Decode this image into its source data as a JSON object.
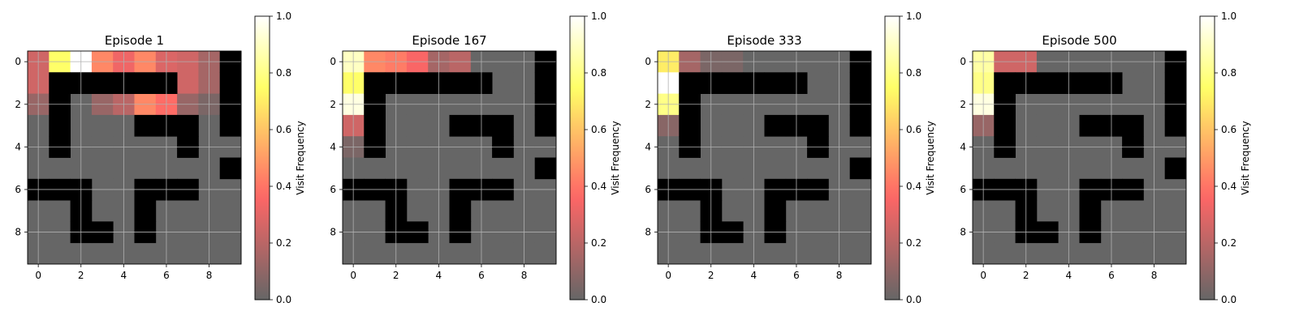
{
  "figure": {
    "colormap": "hot",
    "colormap_alpha": 0.6,
    "wall_color": "#000000",
    "grid_color": "#b0b0b0",
    "colorbar_label": "Visit Frequency",
    "colorbar_ticks": [
      "0.0",
      "0.2",
      "0.4",
      "0.6",
      "0.8",
      "1.0"
    ],
    "axis_ticks": [
      "0",
      "2",
      "4",
      "6",
      "8"
    ]
  },
  "chart_data": [
    {
      "type": "heatmap",
      "title": "Episode 1",
      "xlabel": "",
      "ylabel": "",
      "xlim": [
        -0.5,
        9.5
      ],
      "ylim": [
        9.5,
        -0.5
      ],
      "color_range": [
        0,
        1
      ],
      "grid": true,
      "legend": "colorbar-right",
      "values": [
        [
          0.25,
          0.75,
          1.0,
          0.45,
          0.33,
          0.45,
          0.28,
          0.25,
          0.15,
          0.0
        ],
        [
          0.25,
          0.0,
          0.0,
          0.0,
          0.0,
          0.0,
          0.0,
          0.25,
          0.15,
          0.0
        ],
        [
          0.12,
          0.0,
          0.0,
          0.12,
          0.2,
          0.45,
          0.38,
          0.12,
          0.05,
          0.0
        ],
        [
          0.0,
          0.0,
          0.0,
          0.0,
          0.0,
          0.0,
          0.0,
          0.0,
          0.0,
          0.0
        ],
        [
          0.0,
          0.0,
          0.0,
          0.0,
          0.0,
          0.0,
          0.0,
          0.0,
          0.0,
          0.0
        ],
        [
          0.0,
          0.0,
          0.0,
          0.0,
          0.0,
          0.0,
          0.0,
          0.0,
          0.0,
          0.0
        ],
        [
          0.0,
          0.0,
          0.0,
          0.0,
          0.0,
          0.0,
          0.0,
          0.0,
          0.0,
          0.0
        ],
        [
          0.0,
          0.0,
          0.0,
          0.0,
          0.0,
          0.0,
          0.0,
          0.0,
          0.0,
          0.0
        ],
        [
          0.0,
          0.0,
          0.0,
          0.0,
          0.0,
          0.0,
          0.0,
          0.0,
          0.0,
          0.0
        ],
        [
          0.0,
          0.0,
          0.0,
          0.0,
          0.0,
          0.0,
          0.0,
          0.0,
          0.0,
          0.0
        ]
      ],
      "walls": [
        [
          0,
          9
        ],
        [
          1,
          1
        ],
        [
          1,
          2
        ],
        [
          1,
          3
        ],
        [
          1,
          4
        ],
        [
          1,
          5
        ],
        [
          1,
          6
        ],
        [
          1,
          9
        ],
        [
          2,
          1
        ],
        [
          2,
          9
        ],
        [
          3,
          1
        ],
        [
          3,
          5
        ],
        [
          3,
          6
        ],
        [
          3,
          7
        ],
        [
          3,
          9
        ],
        [
          4,
          1
        ],
        [
          4,
          7
        ],
        [
          5,
          9
        ],
        [
          6,
          0
        ],
        [
          6,
          1
        ],
        [
          6,
          2
        ],
        [
          6,
          5
        ],
        [
          6,
          6
        ],
        [
          6,
          7
        ],
        [
          7,
          2
        ],
        [
          7,
          5
        ],
        [
          8,
          2
        ],
        [
          8,
          3
        ],
        [
          8,
          5
        ]
      ]
    },
    {
      "type": "heatmap",
      "title": "Episode 167",
      "xlabel": "",
      "ylabel": "",
      "xlim": [
        -0.5,
        9.5
      ],
      "ylim": [
        9.5,
        -0.5
      ],
      "color_range": [
        0,
        1
      ],
      "grid": true,
      "legend": "colorbar-right",
      "values": [
        [
          0.9,
          0.45,
          0.42,
          0.35,
          0.15,
          0.2,
          0.0,
          0.0,
          0.0,
          0.0
        ],
        [
          0.75,
          0.0,
          0.0,
          0.0,
          0.0,
          0.0,
          0.0,
          0.0,
          0.0,
          0.0
        ],
        [
          0.95,
          0.0,
          0.0,
          0.0,
          0.0,
          0.0,
          0.0,
          0.0,
          0.0,
          0.0
        ],
        [
          0.25,
          0.0,
          0.0,
          0.0,
          0.0,
          0.0,
          0.0,
          0.0,
          0.0,
          0.0
        ],
        [
          0.05,
          0.0,
          0.0,
          0.0,
          0.0,
          0.0,
          0.0,
          0.0,
          0.0,
          0.0
        ],
        [
          0.0,
          0.0,
          0.0,
          0.0,
          0.0,
          0.0,
          0.0,
          0.0,
          0.0,
          0.0
        ],
        [
          0.0,
          0.0,
          0.0,
          0.0,
          0.0,
          0.0,
          0.0,
          0.0,
          0.0,
          0.0
        ],
        [
          0.0,
          0.0,
          0.0,
          0.0,
          0.0,
          0.0,
          0.0,
          0.0,
          0.0,
          0.0
        ],
        [
          0.0,
          0.0,
          0.0,
          0.0,
          0.0,
          0.0,
          0.0,
          0.0,
          0.0,
          0.0
        ],
        [
          0.0,
          0.0,
          0.0,
          0.0,
          0.0,
          0.0,
          0.0,
          0.0,
          0.0,
          0.0
        ]
      ],
      "walls": [
        [
          0,
          9
        ],
        [
          1,
          1
        ],
        [
          1,
          2
        ],
        [
          1,
          3
        ],
        [
          1,
          4
        ],
        [
          1,
          5
        ],
        [
          1,
          6
        ],
        [
          1,
          9
        ],
        [
          2,
          1
        ],
        [
          2,
          9
        ],
        [
          3,
          1
        ],
        [
          3,
          5
        ],
        [
          3,
          6
        ],
        [
          3,
          7
        ],
        [
          3,
          9
        ],
        [
          4,
          1
        ],
        [
          4,
          7
        ],
        [
          5,
          9
        ],
        [
          6,
          0
        ],
        [
          6,
          1
        ],
        [
          6,
          2
        ],
        [
          6,
          5
        ],
        [
          6,
          6
        ],
        [
          6,
          7
        ],
        [
          7,
          2
        ],
        [
          7,
          5
        ],
        [
          8,
          2
        ],
        [
          8,
          3
        ],
        [
          8,
          5
        ]
      ]
    },
    {
      "type": "heatmap",
      "title": "Episode 333",
      "xlabel": "",
      "ylabel": "",
      "xlim": [
        -0.5,
        9.5
      ],
      "ylim": [
        9.5,
        -0.5
      ],
      "color_range": [
        0,
        1
      ],
      "grid": true,
      "legend": "colorbar-right",
      "values": [
        [
          0.7,
          0.15,
          0.05,
          0.05,
          0.0,
          0.0,
          0.0,
          0.0,
          0.0,
          0.0
        ],
        [
          1.0,
          0.0,
          0.0,
          0.0,
          0.0,
          0.0,
          0.0,
          0.0,
          0.0,
          0.0
        ],
        [
          0.8,
          0.0,
          0.0,
          0.0,
          0.0,
          0.0,
          0.0,
          0.0,
          0.0,
          0.0
        ],
        [
          0.08,
          0.0,
          0.0,
          0.0,
          0.0,
          0.0,
          0.0,
          0.0,
          0.0,
          0.0
        ],
        [
          0.0,
          0.0,
          0.0,
          0.0,
          0.0,
          0.0,
          0.0,
          0.0,
          0.0,
          0.0
        ],
        [
          0.0,
          0.0,
          0.0,
          0.0,
          0.0,
          0.0,
          0.0,
          0.0,
          0.0,
          0.0
        ],
        [
          0.0,
          0.0,
          0.0,
          0.0,
          0.0,
          0.0,
          0.0,
          0.0,
          0.0,
          0.0
        ],
        [
          0.0,
          0.0,
          0.0,
          0.0,
          0.0,
          0.0,
          0.0,
          0.0,
          0.0,
          0.0
        ],
        [
          0.0,
          0.0,
          0.0,
          0.0,
          0.0,
          0.0,
          0.0,
          0.0,
          0.0,
          0.0
        ],
        [
          0.0,
          0.0,
          0.0,
          0.0,
          0.0,
          0.0,
          0.0,
          0.0,
          0.0,
          0.0
        ]
      ],
      "walls": [
        [
          0,
          9
        ],
        [
          1,
          1
        ],
        [
          1,
          2
        ],
        [
          1,
          3
        ],
        [
          1,
          4
        ],
        [
          1,
          5
        ],
        [
          1,
          6
        ],
        [
          1,
          9
        ],
        [
          2,
          1
        ],
        [
          2,
          9
        ],
        [
          3,
          1
        ],
        [
          3,
          5
        ],
        [
          3,
          6
        ],
        [
          3,
          7
        ],
        [
          3,
          9
        ],
        [
          4,
          1
        ],
        [
          4,
          7
        ],
        [
          5,
          9
        ],
        [
          6,
          0
        ],
        [
          6,
          1
        ],
        [
          6,
          2
        ],
        [
          6,
          5
        ],
        [
          6,
          6
        ],
        [
          6,
          7
        ],
        [
          7,
          2
        ],
        [
          7,
          5
        ],
        [
          8,
          2
        ],
        [
          8,
          3
        ],
        [
          8,
          5
        ]
      ]
    },
    {
      "type": "heatmap",
      "title": "Episode 500",
      "xlabel": "",
      "ylabel": "",
      "xlim": [
        -0.5,
        9.5
      ],
      "ylim": [
        9.5,
        -0.5
      ],
      "color_range": [
        0,
        1
      ],
      "grid": true,
      "legend": "colorbar-right",
      "values": [
        [
          0.85,
          0.25,
          0.25,
          0.0,
          0.0,
          0.0,
          0.0,
          0.0,
          0.0,
          0.0
        ],
        [
          0.8,
          0.0,
          0.0,
          0.0,
          0.0,
          0.0,
          0.0,
          0.0,
          0.0,
          0.0
        ],
        [
          0.95,
          0.0,
          0.0,
          0.0,
          0.0,
          0.0,
          0.0,
          0.0,
          0.0,
          0.0
        ],
        [
          0.12,
          0.0,
          0.0,
          0.0,
          0.0,
          0.0,
          0.0,
          0.0,
          0.0,
          0.0
        ],
        [
          0.0,
          0.0,
          0.0,
          0.0,
          0.0,
          0.0,
          0.0,
          0.0,
          0.0,
          0.0
        ],
        [
          0.0,
          0.0,
          0.0,
          0.0,
          0.0,
          0.0,
          0.0,
          0.0,
          0.0,
          0.0
        ],
        [
          0.0,
          0.0,
          0.0,
          0.0,
          0.0,
          0.0,
          0.0,
          0.0,
          0.0,
          0.0
        ],
        [
          0.0,
          0.0,
          0.0,
          0.0,
          0.0,
          0.0,
          0.0,
          0.0,
          0.0,
          0.0
        ],
        [
          0.0,
          0.0,
          0.0,
          0.0,
          0.0,
          0.0,
          0.0,
          0.0,
          0.0,
          0.0
        ],
        [
          0.0,
          0.0,
          0.0,
          0.0,
          0.0,
          0.0,
          0.0,
          0.0,
          0.0,
          0.0
        ]
      ],
      "walls": [
        [
          0,
          9
        ],
        [
          1,
          1
        ],
        [
          1,
          2
        ],
        [
          1,
          3
        ],
        [
          1,
          4
        ],
        [
          1,
          5
        ],
        [
          1,
          6
        ],
        [
          1,
          9
        ],
        [
          2,
          1
        ],
        [
          2,
          9
        ],
        [
          3,
          1
        ],
        [
          3,
          5
        ],
        [
          3,
          6
        ],
        [
          3,
          7
        ],
        [
          3,
          9
        ],
        [
          4,
          1
        ],
        [
          4,
          7
        ],
        [
          5,
          9
        ],
        [
          6,
          0
        ],
        [
          6,
          1
        ],
        [
          6,
          2
        ],
        [
          6,
          5
        ],
        [
          6,
          6
        ],
        [
          6,
          7
        ],
        [
          7,
          2
        ],
        [
          7,
          5
        ],
        [
          8,
          2
        ],
        [
          8,
          3
        ],
        [
          8,
          5
        ]
      ]
    }
  ]
}
